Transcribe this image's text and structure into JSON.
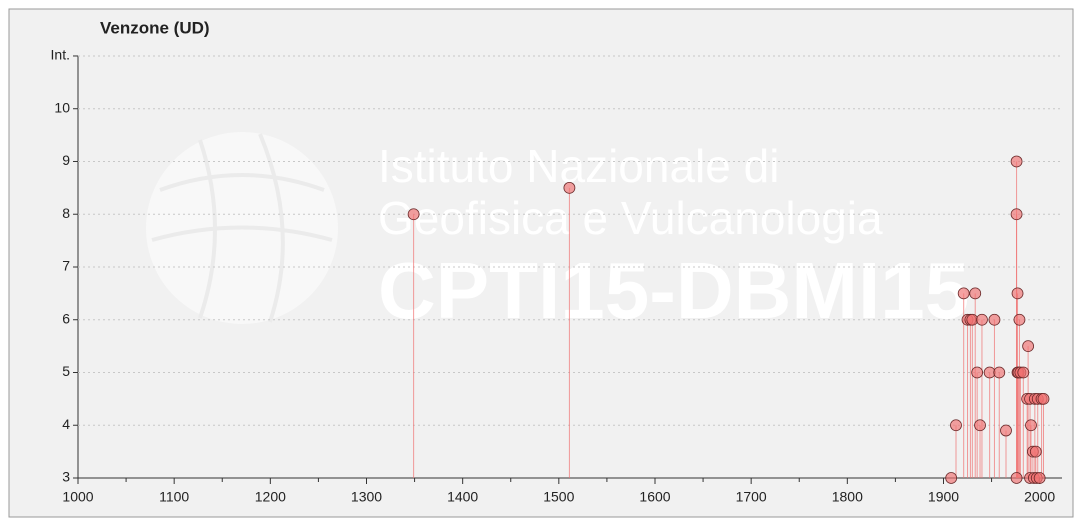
{
  "chart_data": {
    "type": "scatter",
    "title": "Venzone (UD)",
    "watermark": [
      "Istituto Nazionale di",
      "Geofisica e Vulcanologia",
      "CPTI15-DBMI15"
    ],
    "x": [
      1349,
      1511,
      1908,
      1913,
      1921,
      1925,
      1928,
      1930,
      1933,
      1935,
      1938,
      1940,
      1948,
      1953,
      1958,
      1965,
      1976,
      1976,
      1976,
      1977,
      1977,
      1978,
      1979,
      1980,
      1983,
      1987,
      1988,
      1990,
      1990,
      1991,
      1993,
      1994,
      1995,
      1996,
      1997,
      1998,
      2000,
      2002,
      2004
    ],
    "series": [
      {
        "color": "#f07070",
        "values": [
          8,
          8.5,
          3,
          4,
          6.5,
          6,
          6,
          6,
          6.5,
          5,
          4,
          6,
          5,
          6,
          5,
          3.9,
          9,
          8,
          3,
          6.5,
          5,
          5,
          6,
          5,
          5,
          4.5,
          5.5,
          4.5,
          3,
          4,
          3.5,
          3,
          4.5,
          3.5,
          3,
          4.5,
          3,
          4.5,
          4.5
        ]
      }
    ],
    "xlim": [
      1000,
      2030
    ],
    "xticks": [
      1000,
      1100,
      1200,
      1300,
      1400,
      1500,
      1600,
      1700,
      1800,
      1900,
      2000
    ],
    "xminor_ticks": [
      1050,
      1150,
      1250,
      1350,
      1450,
      1550,
      1650,
      1750,
      1850,
      1950
    ],
    "ylim": [
      3,
      11.1
    ],
    "yticks": [
      3,
      4,
      5,
      6,
      7,
      8,
      9,
      10,
      {
        "value": 11,
        "label": "Int."
      }
    ],
    "grid": true
  }
}
